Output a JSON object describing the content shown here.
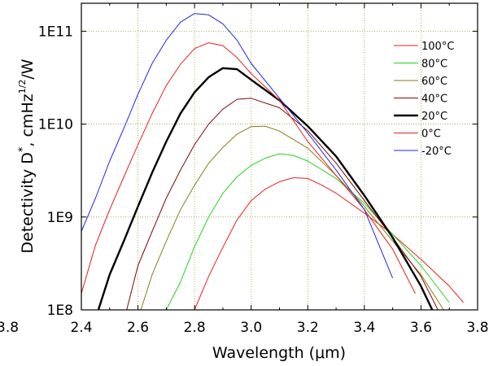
{
  "chart_data": {
    "type": "line",
    "xlabel": "Wavelength (μm)",
    "ylabel": "Detectivity D*, cmHz1/2/W",
    "ylabel_parts": {
      "main": "Detectivity D",
      "star": "*",
      "mid": ", cmHz",
      "sup": "1/2",
      "tail": "/W"
    },
    "xlim": [
      2.4,
      3.8
    ],
    "ylim": [
      100000000.0,
      200000000000.0
    ],
    "yscale": "log",
    "xticks": [
      2.4,
      2.6,
      2.8,
      3.0,
      3.2,
      3.4,
      3.6,
      3.8
    ],
    "xtick_labels": [
      "2.4",
      "2.6",
      "2.8",
      "3.0",
      "3.2",
      "3.4",
      "3.6",
      "3.8"
    ],
    "yticks": [
      100000000.0,
      1000000000.0,
      10000000000.0,
      100000000000.0
    ],
    "ytick_labels": [
      "1E8",
      "1E9",
      "1E10",
      "1E11"
    ],
    "grid": true,
    "legend_position": "top-right",
    "stray_left_label": "3.8",
    "series": [
      {
        "name": "100°C",
        "color": "#e8201a",
        "width": 1,
        "x": [
          2.8,
          2.85,
          2.9,
          2.95,
          3.0,
          3.05,
          3.1,
          3.15,
          3.2,
          3.25,
          3.3,
          3.4,
          3.5,
          3.6,
          3.7,
          3.75
        ],
        "y": [
          100000000.0,
          230000000.0,
          470000000.0,
          930000000.0,
          1500000000.0,
          2000000000.0,
          2400000000.0,
          2650000000.0,
          2600000000.0,
          2200000000.0,
          1800000000.0,
          1100000000.0,
          650000000.0,
          350000000.0,
          180000000.0,
          120000000.0
        ]
      },
      {
        "name": "80°C",
        "color": "#22d322",
        "width": 1,
        "x": [
          2.7,
          2.75,
          2.8,
          2.85,
          2.9,
          2.95,
          3.0,
          3.05,
          3.1,
          3.15,
          3.2,
          3.3,
          3.4,
          3.5,
          3.6,
          3.7
        ],
        "y": [
          100000000.0,
          200000000.0,
          480000000.0,
          1000000000.0,
          1800000000.0,
          2700000000.0,
          3600000000.0,
          4300000000.0,
          4800000000.0,
          4600000000.0,
          4000000000.0,
          2600000000.0,
          1400000000.0,
          650000000.0,
          300000000.0,
          120000000.0
        ]
      },
      {
        "name": "60°C",
        "color": "#8a7b16",
        "width": 1,
        "x": [
          2.61,
          2.65,
          2.7,
          2.75,
          2.8,
          2.85,
          2.9,
          2.95,
          3.0,
          3.05,
          3.1,
          3.2,
          3.3,
          3.4,
          3.5,
          3.6,
          3.68
        ],
        "y": [
          100000000.0,
          240000000.0,
          550000000.0,
          1200000000.0,
          2200000000.0,
          3800000000.0,
          5600000000.0,
          7800000000.0,
          9400000000.0,
          9500000000.0,
          8400000000.0,
          5500000000.0,
          2800000000.0,
          1300000000.0,
          550000000.0,
          240000000.0,
          100000000.0
        ]
      },
      {
        "name": "40°C",
        "color": "#7a0a0a",
        "width": 1,
        "x": [
          2.56,
          2.6,
          2.65,
          2.7,
          2.75,
          2.8,
          2.85,
          2.9,
          2.95,
          3.0,
          3.1,
          3.2,
          3.3,
          3.4,
          3.5,
          3.6,
          3.66
        ],
        "y": [
          100000000.0,
          300000000.0,
          700000000.0,
          1600000000.0,
          3200000000.0,
          6000000000.0,
          10000000000.0,
          14500000000.0,
          18500000000.0,
          19000000000.0,
          15000000000.0,
          8500000000.0,
          3800000000.0,
          1500000000.0,
          600000000.0,
          230000000.0,
          100000000.0
        ]
      },
      {
        "name": "20°C",
        "color": "#000000",
        "width": 2.4,
        "x": [
          2.46,
          2.5,
          2.55,
          2.6,
          2.65,
          2.7,
          2.75,
          2.8,
          2.85,
          2.9,
          2.95,
          3.0,
          3.1,
          3.2,
          3.3,
          3.4,
          3.5,
          3.6,
          3.64
        ],
        "y": [
          100000000.0,
          240000000.0,
          550000000.0,
          1300000000.0,
          3000000000.0,
          6500000000.0,
          13000000000.0,
          22000000000.0,
          32000000000.0,
          40000000000.0,
          39000000000.0,
          30000000000.0,
          18000000000.0,
          9500000000.0,
          4500000000.0,
          1700000000.0,
          600000000.0,
          180000000.0,
          100000000.0
        ]
      },
      {
        "name": "0°C",
        "color": "#e8201a",
        "width": 1,
        "x": [
          2.4,
          2.45,
          2.5,
          2.55,
          2.6,
          2.65,
          2.7,
          2.75,
          2.8,
          2.85,
          2.9,
          2.95,
          3.0,
          3.1,
          3.2,
          3.3,
          3.4,
          3.5,
          3.58
        ],
        "y": [
          150000000.0,
          500000000.0,
          1200000000.0,
          2700000000.0,
          6000000000.0,
          13000000000.0,
          26000000000.0,
          44000000000.0,
          65000000000.0,
          75000000000.0,
          70000000000.0,
          52000000000.0,
          35000000000.0,
          18000000000.0,
          6500000000.0,
          2800000000.0,
          1200000000.0,
          450000000.0,
          150000000.0
        ]
      },
      {
        "name": "-20°C",
        "color": "#1e2adb",
        "width": 1,
        "x": [
          2.4,
          2.45,
          2.5,
          2.55,
          2.6,
          2.65,
          2.7,
          2.75,
          2.8,
          2.85,
          2.9,
          2.95,
          3.0,
          3.1,
          3.2,
          3.3,
          3.4,
          3.5
        ],
        "y": [
          700000000.0,
          1600000000.0,
          4000000000.0,
          9000000000.0,
          21000000000.0,
          45000000000.0,
          80000000000.0,
          125000000000.0,
          155000000000.0,
          150000000000.0,
          120000000000.0,
          80000000000.0,
          45000000000.0,
          19000000000.0,
          8000000000.0,
          3200000000.0,
          1200000000.0,
          220000000.0
        ]
      }
    ]
  }
}
